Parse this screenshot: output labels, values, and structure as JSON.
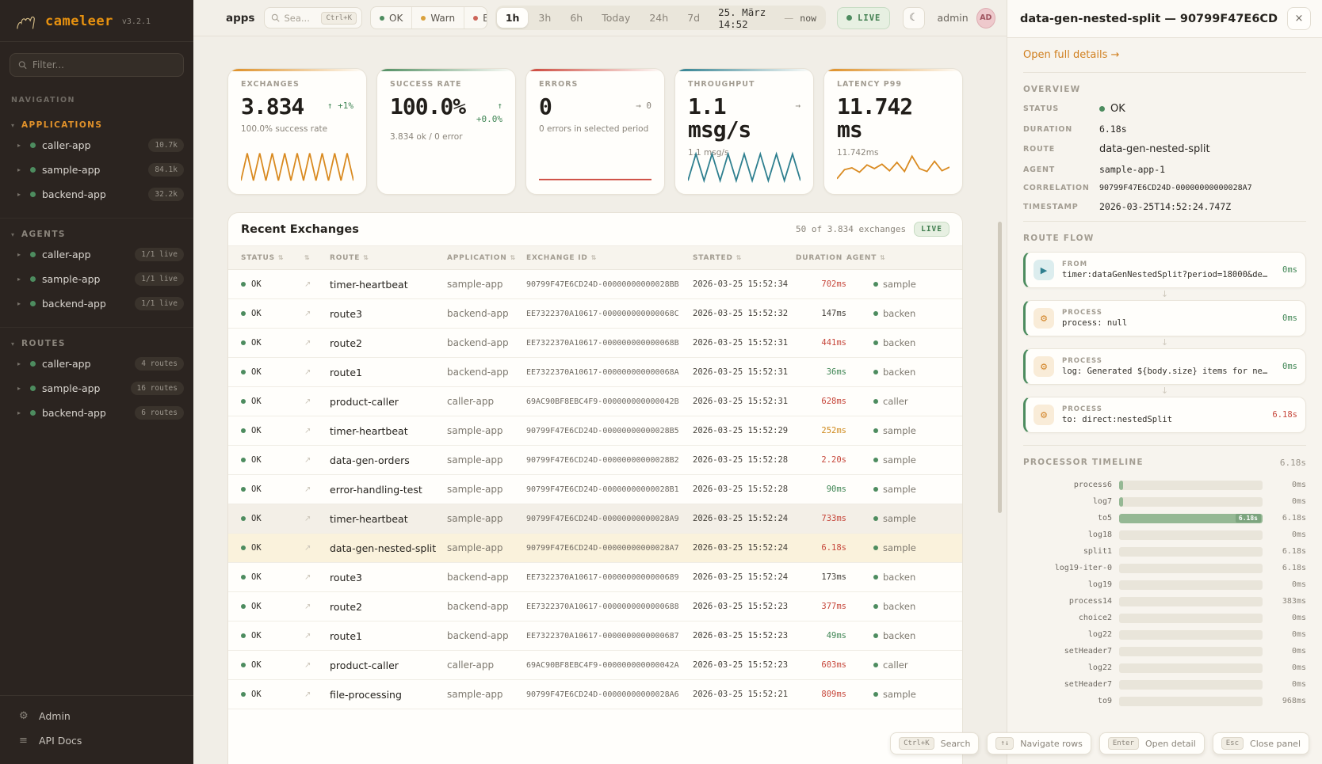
{
  "app": {
    "name": "cameleer",
    "version": "v3.2.1",
    "brand_color": "#e8920f"
  },
  "icons": {
    "close": "×",
    "moon": "☾",
    "sort": "⇅",
    "open": "↗",
    "chevron": "▸",
    "caret": "▾",
    "arrow_down": "↓",
    "play": "▶",
    "gear": "⚙",
    "menu": "≡",
    "arrow_right": "→"
  },
  "sidebar": {
    "filter_placeholder": "Filter...",
    "nav_label": "NAVIGATION",
    "sections": [
      {
        "label": "APPLICATIONS",
        "accent": true,
        "items": [
          {
            "label": "caller-app",
            "badge": "10.7k"
          },
          {
            "label": "sample-app",
            "badge": "84.1k"
          },
          {
            "label": "backend-app",
            "badge": "32.2k"
          }
        ]
      },
      {
        "label": "AGENTS",
        "accent": false,
        "items": [
          {
            "label": "caller-app",
            "badge": "1/1 live"
          },
          {
            "label": "sample-app",
            "badge": "1/1 live"
          },
          {
            "label": "backend-app",
            "badge": "1/1 live"
          }
        ]
      },
      {
        "label": "ROUTES",
        "accent": false,
        "items": [
          {
            "label": "caller-app",
            "badge": "4 routes"
          },
          {
            "label": "sample-app",
            "badge": "16 routes"
          },
          {
            "label": "backend-app",
            "badge": "6 routes"
          }
        ]
      }
    ],
    "footer": [
      {
        "label": "Admin",
        "icon": "gear"
      },
      {
        "label": "API Docs",
        "icon": "menu"
      }
    ]
  },
  "topbar": {
    "context_label": "apps",
    "search": {
      "placeholder": "Sea...",
      "shortcut": "Ctrl+K"
    },
    "status_filters": [
      {
        "label": "OK",
        "color": "#4d8c5f"
      },
      {
        "label": "Warn",
        "color": "#d9a13d"
      },
      {
        "label": "E",
        "color": "#cc6458"
      }
    ],
    "time_ranges": [
      "1h",
      "3h",
      "6h",
      "Today",
      "24h",
      "7d"
    ],
    "active_range": "1h",
    "date_from": "25. März 14:52",
    "date_sep": "—",
    "date_to": "now",
    "live_label": "LIVE",
    "user": {
      "name": "admin",
      "initials": "AD"
    }
  },
  "stats": [
    {
      "label": "EXCHANGES",
      "value": "3.834",
      "trend": [
        "↑ +1%"
      ],
      "trend_color": "#3f8554",
      "sub": "100.0% success rate",
      "accent": "#dd8d22",
      "spark": {
        "color": "#d98a20",
        "points": [
          85,
          10,
          85,
          10,
          85,
          10,
          85,
          10,
          85,
          10,
          85,
          10,
          85,
          10,
          85,
          10,
          85,
          10,
          85
        ]
      }
    },
    {
      "label": "SUCCESS RATE",
      "value": "100.0%",
      "trend": [
        "↑",
        "+0.0%"
      ],
      "trend_color": "#3f8554",
      "sub": "3.834 ok / 0 error",
      "accent": "#4d8c5f",
      "spark": null
    },
    {
      "label": "ERRORS",
      "value": "0",
      "trend": [
        "→ 0"
      ],
      "trend_color": "#8a847a",
      "sub": "0 errors in selected period",
      "accent": "#cc4439",
      "spark": {
        "color": "#cc4439",
        "points": [
          82,
          82
        ]
      }
    },
    {
      "label": "THROUGHPUT",
      "value": "1.1 msg/s",
      "trend": [
        "→"
      ],
      "trend_color": "#8a847a",
      "sub": "1.1 msg/s",
      "accent": "#2e7f8f",
      "spark": {
        "color": "#2e7f8f",
        "points": [
          85,
          12,
          85,
          12,
          85,
          12,
          85,
          12,
          85,
          12,
          85,
          12,
          85,
          12,
          85
        ]
      }
    },
    {
      "label": "LATENCY P99",
      "value": "11.742 ms",
      "trend": [],
      "trend_color": "#8a847a",
      "sub": "11.742ms",
      "accent": "#dd8d22",
      "spark": {
        "color": "#d98a20",
        "points": [
          80,
          55,
          50,
          62,
          42,
          52,
          40,
          58,
          35,
          60,
          18,
          52,
          60,
          32,
          58,
          48
        ]
      }
    }
  ],
  "table": {
    "title": "Recent Exchanges",
    "count_label": "50 of 3.834 exchanges",
    "live_label": "LIVE",
    "columns": [
      "STATUS",
      "",
      "ROUTE",
      "APPLICATION",
      "EXCHANGE ID",
      "STARTED",
      "DURATION",
      "AGENT"
    ],
    "duration_colors": {
      "red": "#c6463a",
      "amber": "#cf8a1e",
      "green": "#3f8554",
      "def": "#44403a"
    },
    "rows": [
      {
        "status": "OK",
        "route": "timer-heartbeat",
        "app": "sample-app",
        "id": "90799F47E6CD24D-00000000000028BB",
        "started": "2026-03-25 15:52:34",
        "dur": "702ms",
        "dc": "red",
        "agent": "sample",
        "hl": null
      },
      {
        "status": "OK",
        "route": "route3",
        "app": "backend-app",
        "id": "EE7322370A10617-000000000000068C",
        "started": "2026-03-25 15:52:32",
        "dur": "147ms",
        "dc": "def",
        "agent": "backen",
        "hl": null
      },
      {
        "status": "OK",
        "route": "route2",
        "app": "backend-app",
        "id": "EE7322370A10617-000000000000068B",
        "started": "2026-03-25 15:52:31",
        "dur": "441ms",
        "dc": "red",
        "agent": "backen",
        "hl": null
      },
      {
        "status": "OK",
        "route": "route1",
        "app": "backend-app",
        "id": "EE7322370A10617-000000000000068A",
        "started": "2026-03-25 15:52:31",
        "dur": "36ms",
        "dc": "green",
        "agent": "backen",
        "hl": null
      },
      {
        "status": "OK",
        "route": "product-caller",
        "app": "caller-app",
        "id": "69AC90BF8EBC4F9-000000000000042B",
        "started": "2026-03-25 15:52:31",
        "dur": "628ms",
        "dc": "red",
        "agent": "caller",
        "hl": null
      },
      {
        "status": "OK",
        "route": "timer-heartbeat",
        "app": "sample-app",
        "id": "90799F47E6CD24D-00000000000028B5",
        "started": "2026-03-25 15:52:29",
        "dur": "252ms",
        "dc": "amber",
        "agent": "sample",
        "hl": null
      },
      {
        "status": "OK",
        "route": "data-gen-orders",
        "app": "sample-app",
        "id": "90799F47E6CD24D-00000000000028B2",
        "started": "2026-03-25 15:52:28",
        "dur": "2.20s",
        "dc": "red",
        "agent": "sample",
        "hl": null
      },
      {
        "status": "OK",
        "route": "error-handling-test",
        "app": "sample-app",
        "id": "90799F47E6CD24D-00000000000028B1",
        "started": "2026-03-25 15:52:28",
        "dur": "90ms",
        "dc": "green",
        "agent": "sample",
        "hl": null
      },
      {
        "status": "OK",
        "route": "timer-heartbeat",
        "app": "sample-app",
        "id": "90799F47E6CD24D-00000000000028A9",
        "started": "2026-03-25 15:52:24",
        "dur": "733ms",
        "dc": "red",
        "agent": "sample",
        "hl": "hover"
      },
      {
        "status": "OK",
        "route": "data-gen-nested-split",
        "app": "sample-app",
        "id": "90799F47E6CD24D-00000000000028A7",
        "started": "2026-03-25 15:52:24",
        "dur": "6.18s",
        "dc": "red",
        "agent": "sample",
        "hl": "selected"
      },
      {
        "status": "OK",
        "route": "route3",
        "app": "backend-app",
        "id": "EE7322370A10617-0000000000000689",
        "started": "2026-03-25 15:52:24",
        "dur": "173ms",
        "dc": "def",
        "agent": "backen",
        "hl": null
      },
      {
        "status": "OK",
        "route": "route2",
        "app": "backend-app",
        "id": "EE7322370A10617-0000000000000688",
        "started": "2026-03-25 15:52:23",
        "dur": "377ms",
        "dc": "red",
        "agent": "backen",
        "hl": null
      },
      {
        "status": "OK",
        "route": "route1",
        "app": "backend-app",
        "id": "EE7322370A10617-0000000000000687",
        "started": "2026-03-25 15:52:23",
        "dur": "49ms",
        "dc": "green",
        "agent": "backen",
        "hl": null
      },
      {
        "status": "OK",
        "route": "product-caller",
        "app": "caller-app",
        "id": "69AC90BF8EBC4F9-000000000000042A",
        "started": "2026-03-25 15:52:23",
        "dur": "603ms",
        "dc": "red",
        "agent": "caller",
        "hl": null
      },
      {
        "status": "OK",
        "route": "file-processing",
        "app": "sample-app",
        "id": "90799F47E6CD24D-00000000000028A6",
        "started": "2026-03-25 15:52:21",
        "dur": "809ms",
        "dc": "red",
        "agent": "sample",
        "hl": null
      }
    ]
  },
  "detail_panel": {
    "title": "data-gen-nested-split — 90799F47E6CD",
    "link": "Open full details →",
    "overview": {
      "label": "OVERVIEW",
      "fields": [
        {
          "key": "STATUS",
          "value": "OK",
          "type": "status"
        },
        {
          "key": "DURATION",
          "value": "6.18s",
          "type": "mono"
        },
        {
          "key": "ROUTE",
          "value": "data-gen-nested-split",
          "type": "text"
        },
        {
          "key": "AGENT",
          "value": "sample-app-1",
          "type": "mono"
        },
        {
          "key": "CORRELATION",
          "value": "90799F47E6CD24D-00000000000028A7",
          "type": "mono-sm"
        },
        {
          "key": "TIMESTAMP",
          "value": "2026-03-25T14:52:24.747Z",
          "type": "mono"
        }
      ]
    },
    "route_flow": {
      "label": "ROUTE FLOW",
      "steps": [
        {
          "type": "FROM",
          "icon": "play",
          "text": "timer:dataGenNestedSplit?period=18000&delay=40…",
          "dur": "0ms",
          "dur_color": "#3f8554"
        },
        {
          "type": "PROCESS",
          "icon": "gear",
          "text": "process: null",
          "dur": "0ms",
          "dur_color": "#3f8554"
        },
        {
          "type": "PROCESS",
          "icon": "gear",
          "text": "log: Generated ${body.size} items for nested …",
          "dur": "0ms",
          "dur_color": "#3f8554"
        },
        {
          "type": "PROCESS",
          "icon": "gear",
          "text": "to: direct:nestedSplit",
          "dur": "6.18s",
          "dur_color": "#c6463a"
        }
      ]
    },
    "timeline": {
      "label": "PROCESSOR TIMELINE",
      "total": "6.18s",
      "rows": [
        {
          "name": "process6",
          "dur": "0ms",
          "pct": 3,
          "bar_label": null
        },
        {
          "name": "log7",
          "dur": "0ms",
          "pct": 3,
          "bar_label": null
        },
        {
          "name": "to5",
          "dur": "6.18s",
          "pct": 100,
          "bar_label": "6.18s"
        },
        {
          "name": "log18",
          "dur": "0ms",
          "pct": 0,
          "bar_label": null
        },
        {
          "name": "split1",
          "dur": "6.18s",
          "pct": 0,
          "bar_label": null
        },
        {
          "name": "log19-iter-0",
          "dur": "6.18s",
          "pct": 0,
          "bar_label": null
        },
        {
          "name": "log19",
          "dur": "0ms",
          "pct": 0,
          "bar_label": null
        },
        {
          "name": "process14",
          "dur": "383ms",
          "pct": 0,
          "bar_label": null
        },
        {
          "name": "choice2",
          "dur": "0ms",
          "pct": 0,
          "bar_label": null
        },
        {
          "name": "log22",
          "dur": "0ms",
          "pct": 0,
          "bar_label": null
        },
        {
          "name": "setHeader7",
          "dur": "0ms",
          "pct": 0,
          "bar_label": null
        },
        {
          "name": "log22",
          "dur": "0ms",
          "pct": 0,
          "bar_label": null
        },
        {
          "name": "setHeader7",
          "dur": "0ms",
          "pct": 0,
          "bar_label": null
        },
        {
          "name": "to9",
          "dur": "968ms",
          "pct": 0,
          "bar_label": null
        }
      ]
    }
  },
  "hints": [
    {
      "key": "Ctrl+K",
      "label": "Search"
    },
    {
      "key": "↑↓",
      "label": "Navigate rows"
    },
    {
      "key": "Enter",
      "label": "Open detail"
    },
    {
      "key": "Esc",
      "label": "Close panel"
    }
  ]
}
